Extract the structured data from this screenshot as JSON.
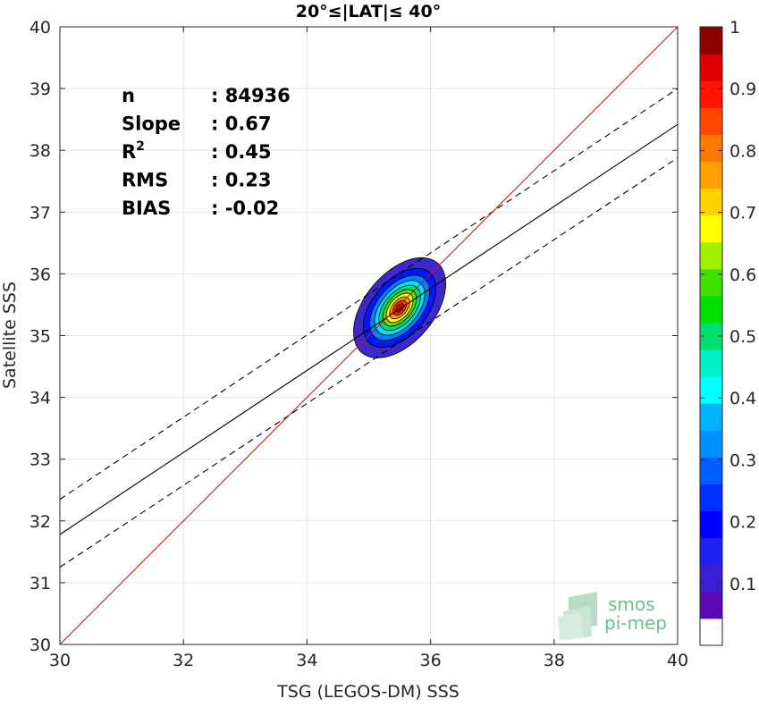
{
  "chart_data": {
    "type": "heatmap",
    "title": "20°≤|LAT|≤ 40°",
    "xlabel": "TSG (LEGOS-DM) SSS",
    "ylabel": "Satellite SSS",
    "xlim": [
      30,
      40
    ],
    "ylim": [
      30,
      40
    ],
    "xticks": [
      "30",
      "32",
      "34",
      "36",
      "38",
      "40"
    ],
    "yticks": [
      "30",
      "31",
      "32",
      "33",
      "34",
      "35",
      "36",
      "37",
      "38",
      "39",
      "40"
    ],
    "grid": true,
    "stats": [
      {
        "label": "n",
        "sep": ": ",
        "value": "84936"
      },
      {
        "label": "Slope",
        "sep": ": ",
        "value": "0.67"
      },
      {
        "label": "R",
        "sup": "2",
        "sep": ": ",
        "value": "0.45"
      },
      {
        "label": "RMS",
        "sep": ": ",
        "value": "0.23"
      },
      {
        "label": "BIAS",
        "sep": ": ",
        "value": "-0.02"
      }
    ],
    "identity_line": {
      "color": "#ff0000",
      "x": [
        30,
        40
      ],
      "y": [
        30,
        40
      ]
    },
    "regression_line": {
      "color": "#000000",
      "x": [
        30,
        40
      ],
      "y": [
        31.78,
        38.42
      ]
    },
    "regression_bounds": [
      {
        "color": "#000000",
        "dash": true,
        "x": [
          30,
          40
        ],
        "y": [
          32.35,
          39.0
        ]
      },
      {
        "color": "#000000",
        "dash": true,
        "x": [
          30,
          40
        ],
        "y": [
          31.25,
          37.88
        ]
      }
    ],
    "density": {
      "center": [
        35.5,
        35.45
      ],
      "angle_deg": 50,
      "levels": [
        {
          "value": 0.05,
          "a": 0.95,
          "b": 0.56,
          "color": "#3d28c8"
        },
        {
          "value": 0.15,
          "a": 0.75,
          "b": 0.44,
          "color": "#0018ff"
        },
        {
          "value": 0.25,
          "a": 0.62,
          "b": 0.36,
          "color": "#0080ff"
        },
        {
          "value": 0.35,
          "a": 0.52,
          "b": 0.3,
          "color": "#00e0ff"
        },
        {
          "value": 0.45,
          "a": 0.43,
          "b": 0.25,
          "color": "#00e070"
        },
        {
          "value": 0.55,
          "a": 0.35,
          "b": 0.2,
          "color": "#60e000"
        },
        {
          "value": 0.65,
          "a": 0.28,
          "b": 0.16,
          "color": "#ffff00"
        },
        {
          "value": 0.75,
          "a": 0.21,
          "b": 0.12,
          "color": "#ffa000"
        },
        {
          "value": 0.85,
          "a": 0.14,
          "b": 0.085,
          "color": "#ff3000"
        },
        {
          "value": 0.95,
          "a": 0.08,
          "b": 0.05,
          "color": "#c80000"
        }
      ]
    },
    "colorbar": {
      "range": [
        0,
        1
      ],
      "ticks": [
        "0.1",
        "0.2",
        "0.3",
        "0.4",
        "0.5",
        "0.6",
        "0.7",
        "0.8",
        "0.9",
        "1"
      ],
      "colors": [
        "#ffffff",
        "#5a0ab4",
        "#3c1ed2",
        "#2020f0",
        "#0000ff",
        "#0030ff",
        "#0060ff",
        "#0090ff",
        "#00b4ff",
        "#00ffff",
        "#00f0c8",
        "#00e070",
        "#00e000",
        "#40e000",
        "#a0f000",
        "#ffff00",
        "#ffd200",
        "#ffa000",
        "#ff7800",
        "#ff4600",
        "#ff1400",
        "#dc0000",
        "#8c0000"
      ]
    }
  },
  "watermark": {
    "line1": "smos",
    "line2": "pi-mep"
  }
}
